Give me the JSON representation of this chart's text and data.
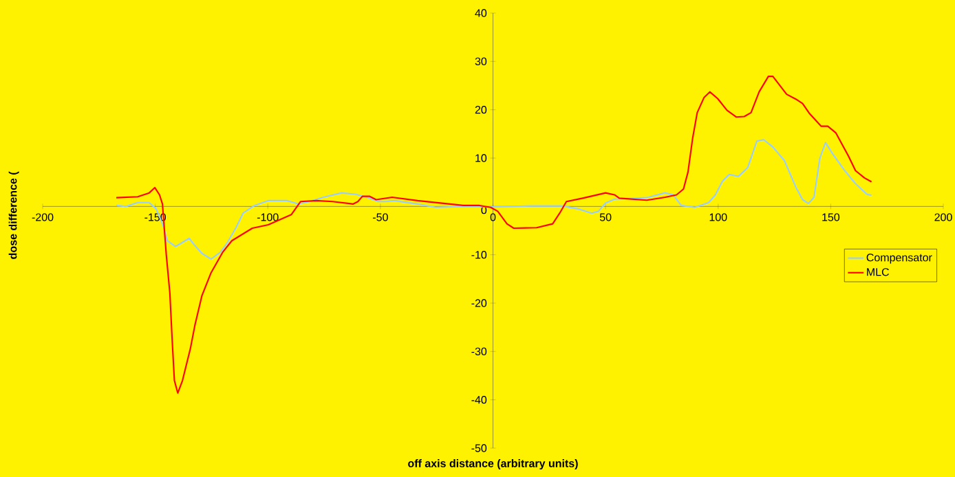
{
  "chart_data": {
    "type": "line",
    "xlabel": "off axis distance (arbitrary units)",
    "ylabel": "dose difference (",
    "xlim": [
      -200,
      200
    ],
    "ylim": [
      -50,
      40
    ],
    "xticks": [
      -200,
      -150,
      -100,
      -50,
      0,
      50,
      100,
      150,
      200
    ],
    "yticks": [
      -50,
      -40,
      -30,
      -20,
      -10,
      0,
      10,
      20,
      30,
      40
    ],
    "grid": false,
    "legend": "right",
    "marker": "none",
    "line_style": "solid",
    "series": [
      {
        "name": "Compensator",
        "color": "#99ccff",
        "x": [
          -167.3,
          -162.9,
          -157.8,
          -152.7,
          -149.6,
          -146.6,
          -144.6,
          -141,
          -134.9,
          -132.4,
          -129.3,
          -125.2,
          -121.1,
          -118.1,
          -114,
          -111,
          -105.9,
          -99.8,
          -91.6,
          -86.5,
          -81.4,
          -75.3,
          -67.2,
          -61,
          -56,
          -50.9,
          -47.8,
          -43.8,
          -33.5,
          -25.4,
          -13.2,
          0,
          17.4,
          30.6,
          37.7,
          43.8,
          46.9,
          50,
          54,
          68.3,
          76.4,
          80,
          83.6,
          89.7,
          95.8,
          98.8,
          101.9,
          104.9,
          109,
          113.1,
          117.2,
          120.2,
          124.3,
          129.4,
          134.5,
          137.5,
          140.1,
          142.6,
          145.2,
          147.7,
          150.8,
          155.9,
          161,
          166.1,
          168.1
        ],
        "values": [
          0.2,
          0,
          0.8,
          0.8,
          -0.5,
          -3.8,
          -7.1,
          -8.3,
          -6.6,
          -8.1,
          -9.7,
          -10.9,
          -9.5,
          -7.6,
          -4.3,
          -1.4,
          0.2,
          1.2,
          1.2,
          0.5,
          1,
          1.9,
          2.8,
          2.5,
          1.9,
          1,
          1,
          1.2,
          0.5,
          -0.2,
          0,
          -0.1,
          0.1,
          0.1,
          -0.5,
          -1.4,
          -1,
          0.7,
          1.5,
          1.8,
          2.8,
          2.4,
          0.2,
          -0.2,
          0.8,
          2.4,
          5.2,
          6.6,
          6.2,
          8,
          13.5,
          13.8,
          12.3,
          9.5,
          4,
          1.4,
          0.6,
          1.9,
          10,
          13.2,
          10.9,
          7.6,
          4.7,
          2.5,
          2.3
        ]
      },
      {
        "name": "MLC",
        "color": "#ff0000",
        "x": [
          -167.3,
          -157.8,
          -152.7,
          -150.2,
          -148.1,
          -146.8,
          -146.1,
          -145.1,
          -143.5,
          -142.5,
          -141.5,
          -140,
          -137.9,
          -134.4,
          -132.4,
          -129.3,
          -125.2,
          -120.1,
          -116,
          -106.9,
          -99.8,
          -89.6,
          -85.5,
          -78.4,
          -71.2,
          -62.1,
          -60,
          -58,
          -54.9,
          -51.9,
          -44.8,
          -33.5,
          -23.4,
          -13.2,
          -6,
          -1,
          2.1,
          6.2,
          9.2,
          19.4,
          26.5,
          29.6,
          32.6,
          39.8,
          50,
          54,
          56.1,
          68.3,
          76.4,
          81.5,
          84.6,
          86.6,
          88.7,
          90.7,
          93.7,
          96.3,
          99.8,
          103.9,
          108,
          111.6,
          114.6,
          118.2,
          122.3,
          124.3,
          130.4,
          134.5,
          137.5,
          140.6,
          145.7,
          148.7,
          152.3,
          157.9,
          161,
          165,
          168.1
        ],
        "values": [
          1.8,
          2,
          2.8,
          3.9,
          2.4,
          0.5,
          -3.8,
          -10,
          -18,
          -27.5,
          -36,
          -38.6,
          -36,
          -29.4,
          -24.6,
          -18.5,
          -13.7,
          -9.5,
          -7.1,
          -4.5,
          -3.8,
          -1.7,
          1,
          1.2,
          1,
          0.5,
          1,
          2.1,
          2.1,
          1.4,
          1.9,
          1.2,
          0.7,
          0.2,
          0.2,
          -0.2,
          -1,
          -3.6,
          -4.5,
          -4.4,
          -3.6,
          -1.4,
          1,
          1.7,
          2.8,
          2.4,
          1.7,
          1.3,
          1.9,
          2.4,
          3.6,
          7.1,
          14.2,
          19.4,
          22.5,
          23.7,
          22.3,
          19.9,
          18.5,
          18.6,
          19.4,
          23.7,
          26.9,
          26.9,
          23.2,
          22.2,
          21.3,
          19.2,
          16.6,
          16.6,
          15.2,
          10.4,
          7.4,
          5.9,
          5.1
        ]
      }
    ]
  }
}
